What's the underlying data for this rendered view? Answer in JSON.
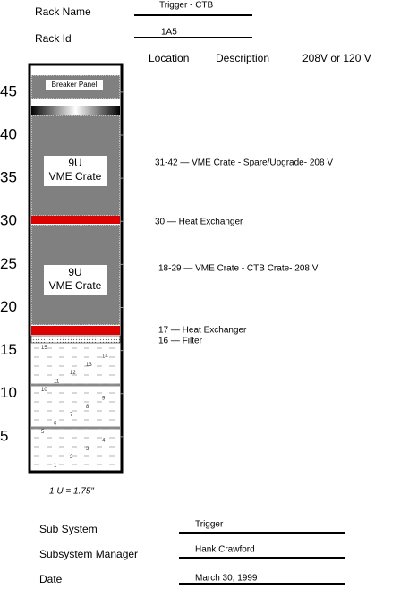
{
  "header": {
    "rack_name_label": "Rack Name",
    "rack_name": "Trigger - CTB",
    "rack_id_label": "Rack Id",
    "rack_id": "1A5"
  },
  "columns": [
    "Location",
    "Description",
    "208V or 120 V"
  ],
  "scale": [
    45,
    40,
    35,
    30,
    25,
    20,
    15,
    10,
    5
  ],
  "rack": {
    "breaker": "Breaker Panel",
    "crate_upper": [
      "9U",
      "VME Crate"
    ],
    "crate_lower": [
      "9U",
      "VME Crate"
    ],
    "slot_numbers": [
      "1",
      "2",
      "3",
      "4",
      "5",
      "6",
      "7",
      "8",
      "9",
      "10",
      "11",
      "12",
      "13",
      "14",
      "15"
    ]
  },
  "annotations": [
    "31-42 — VME Crate  - Spare/Upgrade- 208 V",
    "30 — Heat Exchanger",
    "18-29 — VME Crate  - CTB Crate- 208 V",
    "17 — Heat Exchanger",
    "16 — Filter"
  ],
  "unit_note": "1 U = 1.75\"",
  "footer": {
    "sub_system_label": "Sub System",
    "sub_system": "Trigger",
    "manager_label": "Subsystem Manager",
    "manager": "Hank Crawford",
    "date_label": "Date",
    "date": "March 30, 1999"
  }
}
